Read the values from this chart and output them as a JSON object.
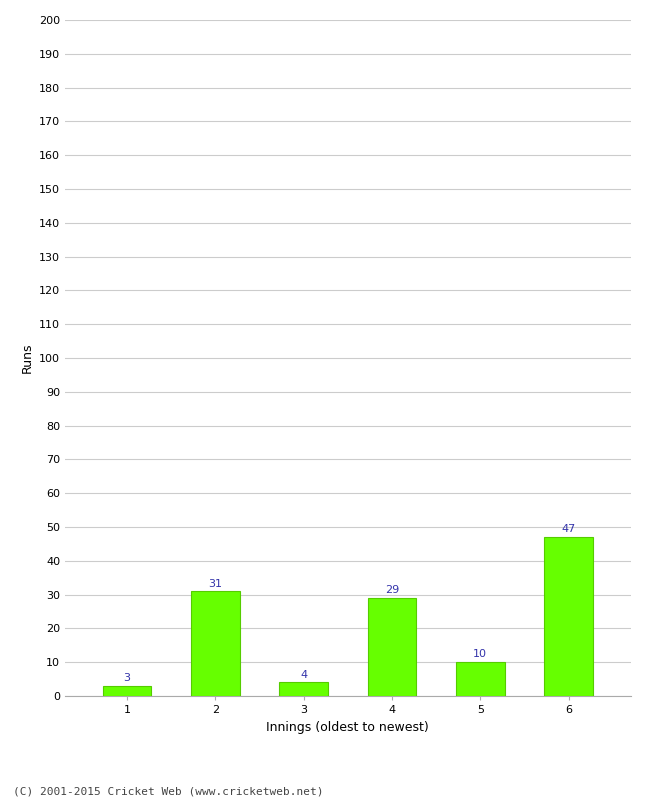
{
  "categories": [
    "1",
    "2",
    "3",
    "4",
    "5",
    "6"
  ],
  "values": [
    3,
    31,
    4,
    29,
    10,
    47
  ],
  "bar_color": "#66ff00",
  "bar_edge_color": "#55cc00",
  "label_color": "#3333aa",
  "xlabel": "Innings (oldest to newest)",
  "ylabel": "Runs",
  "ylim": [
    0,
    200
  ],
  "yticks": [
    0,
    10,
    20,
    30,
    40,
    50,
    60,
    70,
    80,
    90,
    100,
    110,
    120,
    130,
    140,
    150,
    160,
    170,
    180,
    190,
    200
  ],
  "background_color": "#ffffff",
  "footer": "(C) 2001-2015 Cricket Web (www.cricketweb.net)",
  "grid_color": "#cccccc",
  "label_fontsize": 8,
  "axis_tick_fontsize": 8,
  "axis_label_fontsize": 9,
  "footer_fontsize": 8,
  "bar_width": 0.55
}
